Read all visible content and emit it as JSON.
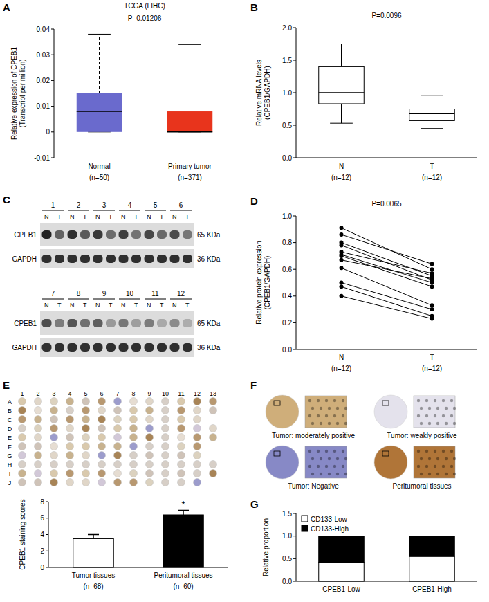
{
  "chart_data": [
    {
      "type": "box",
      "panel": "A",
      "title": "TCGA (LIHC)",
      "annotation": "P=0.01206",
      "y_label": [
        "Relative expression of CPEB1",
        "(Transcript per million)"
      ],
      "categories": [
        "Normal",
        "Primary tumor"
      ],
      "category_notes": [
        "(n=50)",
        "(n=371)"
      ],
      "boxes": [
        {
          "min": 0,
          "q1": 0,
          "median": 0.008,
          "q3": 0.015,
          "max": 0.038
        },
        {
          "min": 0,
          "q1": 0,
          "median": 0,
          "q3": 0.008,
          "max": 0.034
        }
      ],
      "colors": [
        "#6a6acd",
        "#e8341c"
      ],
      "line_style": "dashed",
      "ylim": [
        -0.01,
        0.04
      ],
      "yticks": [
        -0.01,
        0,
        0.01,
        0.02,
        0.03,
        0.04
      ]
    },
    {
      "type": "box",
      "panel": "B",
      "annotation": "P=0.0096",
      "y_label": [
        "Relative mRNA levels",
        "(CPEB1/GAPDH)"
      ],
      "categories": [
        "N",
        "T"
      ],
      "category_notes": [
        "(n=12)",
        "(n=12)"
      ],
      "boxes": [
        {
          "min": 0.53,
          "q1": 0.83,
          "median": 1.0,
          "q3": 1.4,
          "max": 1.75
        },
        {
          "min": 0.45,
          "q1": 0.57,
          "median": 0.68,
          "q3": 0.75,
          "max": 0.96
        }
      ],
      "color": "#ffffff",
      "line_style": "solid",
      "ylim": [
        0,
        2
      ],
      "yticks": [
        {
          "value": 0,
          "label": "0.0"
        },
        0.5,
        {
          "value": 1,
          "label": "1.0"
        },
        1.5,
        {
          "value": 2,
          "label": "2.0"
        }
      ]
    },
    {
      "type": "line",
      "panel": "D",
      "annotation": "P=0.0065",
      "y_label": [
        "Relative protein expression",
        "(CPEB1/GAPDH)"
      ],
      "categories": [
        "N",
        "T"
      ],
      "category_notes": [
        "(n=12)",
        "(n=12)"
      ],
      "series": [
        {
          "values": [
            0.91,
            0.6
          ]
        },
        {
          "values": [
            0.86,
            0.64
          ]
        },
        {
          "values": [
            0.8,
            0.55
          ]
        },
        {
          "values": [
            0.78,
            0.52
          ]
        },
        {
          "values": [
            0.73,
            0.57
          ]
        },
        {
          "values": [
            0.71,
            0.5
          ]
        },
        {
          "values": [
            0.7,
            0.47
          ]
        },
        {
          "values": [
            0.67,
            0.53
          ]
        },
        {
          "values": [
            0.61,
            0.33
          ]
        },
        {
          "values": [
            0.5,
            0.3
          ]
        },
        {
          "values": [
            0.47,
            0.25
          ]
        },
        {
          "values": [
            0.4,
            0.23
          ]
        }
      ],
      "color": "#000000",
      "marker": "circle",
      "ylim": [
        0,
        1
      ],
      "yticks": [
        {
          "value": 0,
          "label": "0.0"
        },
        0.2,
        0.4,
        0.6,
        0.8,
        {
          "value": 1,
          "label": "1.0"
        }
      ]
    },
    {
      "type": "bar",
      "y_label": "CPEB1 staining scores",
      "categories": [
        "Tumor tissues",
        "Peritumoral tissues"
      ],
      "category_notes": [
        "(n=68)",
        "(n=60)"
      ],
      "values": [
        3.5,
        6.4
      ],
      "errors": [
        0.5,
        0.55
      ],
      "colors": [
        "#ffffff",
        "#000000"
      ],
      "annotation": "*",
      "ylim": [
        0,
        8
      ],
      "yticks": [
        0,
        2,
        4,
        6,
        8
      ]
    },
    {
      "type": "bar",
      "panel": "G",
      "stacked": true,
      "legend": "upper left",
      "y_label": "Relative proportion",
      "categories": [
        "CPEB1-Low",
        "CPEB1-High"
      ],
      "series": [
        {
          "name": "CD133-Low",
          "color": "#ffffff",
          "values": [
            0.42,
            0.55
          ]
        },
        {
          "name": "CD133-High",
          "color": "#000000",
          "values": [
            0.58,
            0.45
          ]
        }
      ],
      "ylim": [
        0,
        1.5
      ],
      "yticks": [
        {
          "value": 0,
          "label": "0.0"
        },
        0.5,
        {
          "value": 1,
          "label": "1.0"
        },
        1.5
      ]
    }
  ],
  "blot": {
    "panel": "C",
    "rows": [
      {
        "lanes": [
          "1",
          "2",
          "3",
          "4",
          "5",
          "6"
        ]
      },
      {
        "lanes": [
          "7",
          "8",
          "9",
          "10",
          "11",
          "12"
        ]
      }
    ],
    "lane_labels": [
      "N",
      "T"
    ],
    "proteins": [
      {
        "name": "CPEB1",
        "size": "65 KDa"
      },
      {
        "name": "GAPDH",
        "size": "36 KDa"
      }
    ]
  },
  "tma": {
    "panel": "E",
    "columns": [
      "1",
      "2",
      "3",
      "4",
      "5",
      "6",
      "7",
      "8",
      "9",
      "10",
      "11",
      "12",
      "13"
    ],
    "rows": [
      "A",
      "B",
      "C",
      "D",
      "E",
      "F",
      "G",
      "H",
      "I",
      "J"
    ]
  },
  "ihc": {
    "panel": "F",
    "images": [
      {
        "caption": "Tumor: moderately positive",
        "color": "#cfae7a"
      },
      {
        "caption": "Tumor: weakly positive",
        "color": "#e4e2ec"
      },
      {
        "caption": "Tumor: Negative",
        "color": "#8789c6"
      },
      {
        "caption": "Peritumoral tissues",
        "color": "#b07538"
      }
    ]
  }
}
